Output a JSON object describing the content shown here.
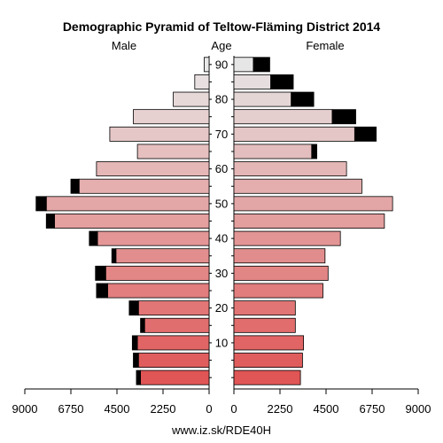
{
  "chart_data": {
    "type": "bar",
    "title": "Demographic Pyramid of Teltow-Fläming District 2014",
    "left_label": "Male",
    "center_label": "Age",
    "right_label": "Female",
    "footer": "www.iz.sk/RDE40H",
    "xlim": [
      0,
      9000
    ],
    "x_ticks": [
      9000,
      6750,
      4500,
      2250,
      0
    ],
    "x_ticks_right": [
      0,
      2250,
      4500,
      6750,
      9000
    ],
    "age_ticks": [
      "10",
      "20",
      "30",
      "40",
      "50",
      "60",
      "70",
      "80",
      "90"
    ],
    "age_groups": [
      "0-4",
      "5-9",
      "10-14",
      "15-19",
      "20-24",
      "25-29",
      "30-34",
      "35-39",
      "40-44",
      "45-49",
      "50-54",
      "55-59",
      "60-64",
      "65-69",
      "70-74",
      "75-79",
      "80-84",
      "85-89",
      "90+"
    ],
    "male": {
      "values": [
        3350,
        3450,
        3500,
        3150,
        3450,
        4950,
        5050,
        4550,
        5450,
        7550,
        7950,
        6350,
        5500,
        3500,
        4850,
        3700,
        1750,
        700,
        240
      ],
      "excess": [
        200,
        250,
        250,
        200,
        450,
        550,
        500,
        200,
        400,
        400,
        500,
        400,
        0,
        0,
        0,
        0,
        0,
        0,
        0
      ]
    },
    "female": {
      "values": [
        3250,
        3350,
        3400,
        3000,
        3000,
        4350,
        4600,
        4450,
        5200,
        7350,
        7750,
        6250,
        5500,
        3800,
        5900,
        4800,
        2800,
        1800,
        950
      ],
      "excess": [
        0,
        0,
        0,
        0,
        0,
        0,
        0,
        0,
        0,
        0,
        0,
        0,
        0,
        250,
        1050,
        1150,
        1100,
        1100,
        800
      ]
    },
    "colors": {
      "excess": "#000000",
      "border": "#000000"
    }
  }
}
